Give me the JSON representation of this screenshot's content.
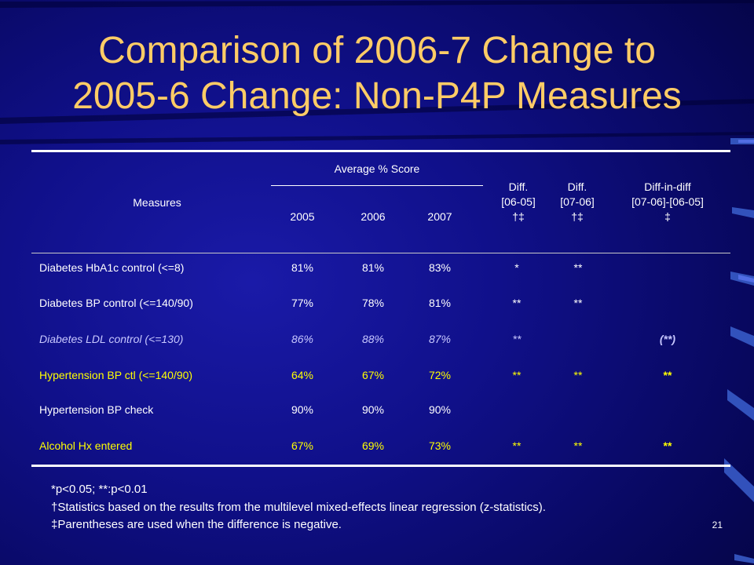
{
  "title_line1": "Comparison of 2006-7 Change to",
  "title_line2": "2005-6 Change: Non-P4P Measures",
  "header": {
    "measures": "Measures",
    "avg_score": "Average % Score",
    "y2005": "2005",
    "y2006": "2006",
    "y2007": "2007",
    "diff1": [
      "Diff.",
      "[06-05]",
      "†‡"
    ],
    "diff2": [
      "Diff.",
      "[07-06]",
      "†‡"
    ],
    "diffindiff": [
      "Diff-in-diff",
      "[07-06]-[06-05]",
      "‡"
    ]
  },
  "rows": [
    {
      "measure": "Diabetes HbA1c control (<=8)",
      "v2005": "81%",
      "v2006": "81%",
      "v2007": "83%",
      "d1": "*",
      "d2": "**",
      "dd": "",
      "color": "#ffffff",
      "italic": false,
      "bold_dd": false
    },
    {
      "measure": "Diabetes BP control (<=140/90)",
      "v2005": "77%",
      "v2006": "78%",
      "v2007": "81%",
      "d1": "**",
      "d2": "**",
      "dd": "",
      "color": "#ffffff",
      "italic": false,
      "bold_dd": false
    },
    {
      "measure": "Diabetes LDL control (<=130)",
      "v2005": "86%",
      "v2006": "88%",
      "v2007": "87%",
      "d1": "**",
      "d2": "",
      "dd": "(**)",
      "color": "#c8c8ff",
      "italic": true,
      "bold_dd": true
    },
    {
      "measure": "Hypertension BP ctl (<=140/90)",
      "v2005": "64%",
      "v2006": "67%",
      "v2007": "72%",
      "d1": "**",
      "d2": "**",
      "dd": "**",
      "color": "#ffff00",
      "italic": false,
      "bold_dd": true
    },
    {
      "measure": "Hypertension BP check",
      "v2005": "90%",
      "v2006": "90%",
      "v2007": "90%",
      "d1": "",
      "d2": "",
      "dd": "",
      "color": "#ffffff",
      "italic": false,
      "bold_dd": false
    },
    {
      "measure": "Alcohol Hx entered",
      "v2005": "67%",
      "v2006": "69%",
      "v2007": "73%",
      "d1": "**",
      "d2": "**",
      "dd": "**",
      "color": "#ffff00",
      "italic": false,
      "bold_dd": true
    }
  ],
  "footnotes": {
    "line1": "*p<0.05; **:p<0.01",
    "line2": "†Statistics based on the results from the multilevel mixed-effects linear regression (z-statistics).",
    "line3": "‡Parentheses are used when the difference is negative."
  },
  "page_number": "21"
}
